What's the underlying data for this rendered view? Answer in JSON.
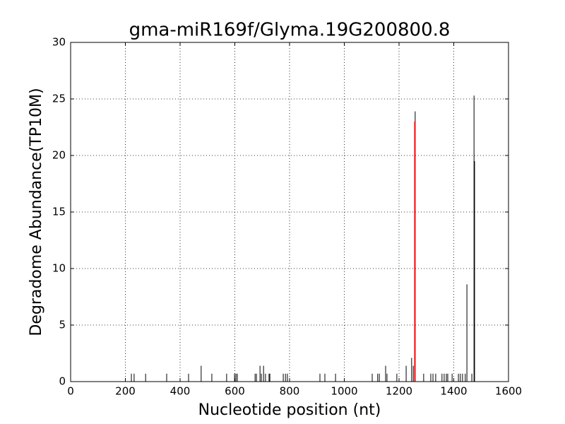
{
  "chart_data": {
    "type": "stem",
    "title": "gma-miR169f/Glyma.19G200800.8",
    "xlabel": "Nucleotide position (nt)",
    "ylabel": "Degradome Abundance(TP10M)",
    "xlim": [
      0,
      1600
    ],
    "xticks": [
      0,
      200,
      400,
      600,
      800,
      1000,
      1200,
      1400,
      1600
    ],
    "ylim": [
      0,
      30
    ],
    "yticks": [
      0,
      5,
      10,
      15,
      20,
      25,
      30
    ],
    "grid": true,
    "series": [
      {
        "color": "#000000",
        "x": [
          222,
          232,
          274,
          351,
          431,
          477,
          516,
          570,
          599,
          604,
          609,
          674,
          679,
          692,
          697,
          705,
          712,
          725,
          728,
          777,
          785,
          792,
          911,
          929,
          968,
          1102,
          1122,
          1128,
          1151,
          1156,
          1192,
          1226,
          1246,
          1252,
          1259,
          1290,
          1316,
          1324,
          1334,
          1357,
          1365,
          1373,
          1378,
          1394,
          1417,
          1424,
          1432,
          1442,
          1448,
          1466,
          1474,
          1476
        ],
        "values": [
          0.7,
          0.7,
          0.7,
          0.7,
          0.7,
          1.4,
          0.7,
          0.7,
          0.7,
          0.7,
          0.7,
          0.7,
          0.7,
          1.4,
          0.7,
          1.4,
          0.7,
          0.7,
          0.7,
          0.7,
          0.7,
          0.7,
          0.7,
          0.7,
          0.7,
          0.7,
          0.7,
          0.7,
          1.4,
          0.7,
          0.7,
          1.4,
          2.1,
          1.4,
          23.9,
          0.7,
          0.7,
          0.7,
          0.7,
          0.7,
          0.7,
          0.7,
          0.7,
          0.7,
          0.7,
          0.7,
          0.7,
          0.7,
          8.6,
          0.7,
          25.3,
          19.5
        ]
      },
      {
        "color": "#ff0000",
        "x": [
          1258
        ],
        "values": [
          23.0
        ]
      }
    ]
  }
}
